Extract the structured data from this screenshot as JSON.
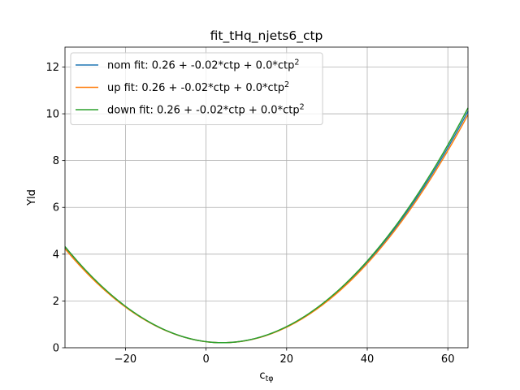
{
  "chart_data": {
    "type": "line",
    "title": "fit_tHq_njets6_ctp",
    "xlabel": "c_tφ",
    "ylabel": "Yld",
    "xlim": [
      -35,
      65
    ],
    "ylim": [
      0,
      12.85
    ],
    "xticks": [
      -20,
      0,
      20,
      40,
      60
    ],
    "xtick_labels": [
      "−20",
      "0",
      "20",
      "40",
      "60"
    ],
    "yticks": [
      0,
      2,
      4,
      6,
      8,
      10,
      12
    ],
    "ytick_labels": [
      "0",
      "2",
      "4",
      "6",
      "8",
      "10",
      "12"
    ],
    "grid": true,
    "legend_position": "top-left",
    "series": [
      {
        "name": "nom fit: 0.26 + -0.02*ctp + 0.0*ctp²",
        "legend_text": "nom fit: 0.26 + -0.02*ctp + 0.0*ctp",
        "legend_sup": "2",
        "color": "#1f77b4",
        "coefficients": {
          "a": 0.2597,
          "b": -0.0215,
          "c": 0.002661
        }
      },
      {
        "name": "up fit: 0.26 + -0.02*ctp + 0.0*ctp²",
        "legend_text": "up fit: 0.26 + -0.02*ctp + 0.0*ctp",
        "legend_sup": "2",
        "color": "#ff7f0e",
        "coefficients": {
          "a": 0.2596,
          "b": -0.0215,
          "c": 0.002627
        }
      },
      {
        "name": "down fit: 0.26 + -0.02*ctp + 0.0*ctp²",
        "legend_text": "down fit: 0.26 + -0.02*ctp + 0.0*ctp",
        "legend_sup": "2",
        "color": "#2ca02c",
        "coefficients": {
          "a": 0.2598,
          "b": -0.0217,
          "c": 0.002698
        }
      }
    ]
  }
}
